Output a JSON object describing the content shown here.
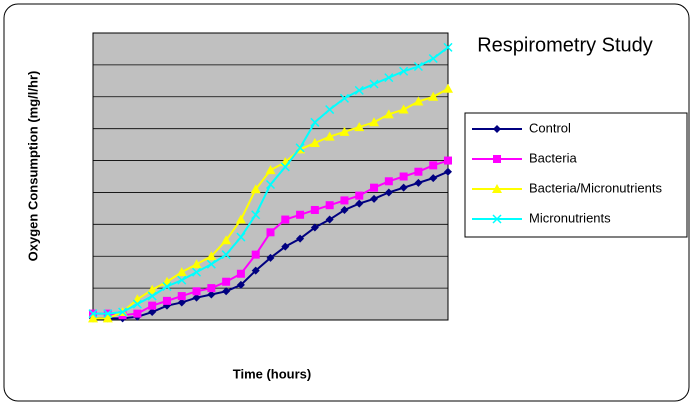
{
  "chart_data": {
    "type": "line",
    "title": "Respirometry Study",
    "xlabel": "Time (hours)",
    "ylabel": "Oxygen Consumption (mg/l/hr)",
    "categories": [
      null,
      null,
      null,
      null,
      null,
      null,
      null,
      null,
      null,
      null,
      null,
      null,
      null,
      null,
      null,
      null,
      null,
      null,
      null,
      null,
      null,
      null,
      null,
      null,
      null
    ],
    "ylim": [
      0,
      9
    ],
    "yticks": [
      0,
      1,
      2,
      3,
      4,
      5,
      6,
      7,
      8,
      9
    ],
    "grid": true,
    "legend": "right",
    "series": [
      {
        "name": "Control",
        "color": "#000080",
        "marker": "diamond",
        "values": [
          0.05,
          0.05,
          0.05,
          0.1,
          0.25,
          0.45,
          0.55,
          0.7,
          0.8,
          0.9,
          1.1,
          1.55,
          1.95,
          2.3,
          2.55,
          2.9,
          3.15,
          3.45,
          3.65,
          3.8,
          4.0,
          4.15,
          4.3,
          4.45,
          4.65
        ]
      },
      {
        "name": "Bacteria",
        "color": "#ff00ff",
        "marker": "square",
        "values": [
          0.2,
          0.2,
          0.15,
          0.2,
          0.45,
          0.6,
          0.75,
          0.9,
          1.0,
          1.2,
          1.45,
          2.05,
          2.75,
          3.15,
          3.3,
          3.45,
          3.6,
          3.75,
          3.9,
          4.15,
          4.35,
          4.5,
          4.65,
          4.85,
          5.0
        ]
      },
      {
        "name": "Bacteria/Micronutrients",
        "color": "#ffff00",
        "marker": "triangle",
        "values": [
          0.05,
          0.05,
          0.25,
          0.65,
          0.95,
          1.2,
          1.5,
          1.75,
          2.0,
          2.5,
          3.15,
          4.1,
          4.7,
          4.95,
          5.35,
          5.55,
          5.75,
          5.9,
          6.05,
          6.2,
          6.45,
          6.6,
          6.85,
          7.0,
          7.25
        ]
      },
      {
        "name": "Micronutrients",
        "color": "#00ffff",
        "marker": "x",
        "values": [
          0.2,
          0.2,
          0.25,
          0.5,
          0.75,
          1.05,
          1.25,
          1.5,
          1.75,
          2.05,
          2.6,
          3.3,
          4.25,
          4.8,
          5.4,
          6.2,
          6.6,
          6.95,
          7.2,
          7.4,
          7.6,
          7.8,
          7.95,
          8.2,
          8.55
        ]
      }
    ]
  }
}
